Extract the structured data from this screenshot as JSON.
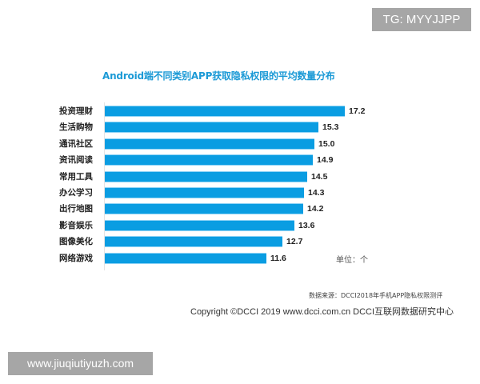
{
  "watermarks": {
    "top_right": "TG: MYYJJPP",
    "bottom_left": "www.jiuqiutiyuzh.com"
  },
  "chart_data": {
    "type": "bar",
    "orientation": "horizontal",
    "title": "Android端不同类别APP获取隐私权限的平均数量分布",
    "categories": [
      "投资理财",
      "生活购物",
      "通讯社区",
      "资讯阅读",
      "常用工具",
      "办公学习",
      "出行地图",
      "影音娱乐",
      "图像美化",
      "网络游戏"
    ],
    "values": [
      17.2,
      15.3,
      15.0,
      14.9,
      14.5,
      14.3,
      14.2,
      13.6,
      12.7,
      11.6
    ],
    "value_labels": [
      "17.2",
      "15.3",
      "15.0",
      "14.9",
      "14.5",
      "14.3",
      "14.2",
      "13.6",
      "12.7",
      "11.6"
    ],
    "xlabel": "",
    "ylabel": "",
    "unit": "单位：个",
    "grid": false,
    "legend": null,
    "bar_color": "#0a9de2",
    "title_color": "#1c9ad6",
    "source": "数据来源：DCCI2018年手机APP隐私权限测评",
    "copyright": "Copyright ©DCCI 2019  www.dcci.com.cn   DCCI互联网数据研究中心"
  }
}
